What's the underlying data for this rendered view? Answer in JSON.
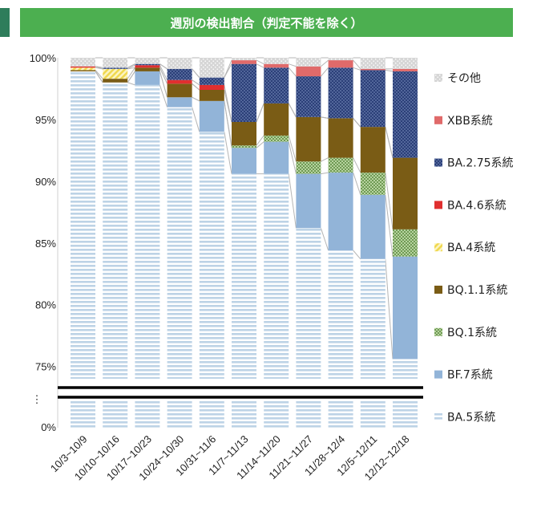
{
  "chart_data": {
    "type": "bar",
    "stacked": true,
    "title": "週別の検出割合（判定不能を除く）",
    "categories": [
      "10/3~10/9",
      "10/10~10/16",
      "10/17~10/23",
      "10/24~10/30",
      "10/31~11/6",
      "11/7~11/13",
      "11/14~11/20",
      "11/21~11/27",
      "11/28~12/4",
      "12/5~12/11",
      "12/12~12/18"
    ],
    "y_tick_labels": [
      "100%",
      "95%",
      "90%",
      "85%",
      "80%",
      "75%",
      "0%"
    ],
    "broken_axis": {
      "lower_label": "0%",
      "upper_range": [
        74,
        100
      ],
      "marker": "⋮"
    },
    "legend_position": "right",
    "series": [
      {
        "name": "BA.5系統",
        "color": "#bdd3e6",
        "pattern": "horizontal-lines",
        "values": [
          98.9,
          98.0,
          97.8,
          96.0,
          94.0,
          90.6,
          90.6,
          86.2,
          84.4,
          83.7,
          75.6
        ]
      },
      {
        "name": "BF.7系統",
        "color": "#92b4d8",
        "pattern": "solid",
        "values": [
          0.0,
          0.0,
          1.1,
          0.8,
          2.5,
          2.1,
          2.6,
          4.4,
          6.3,
          5.2,
          8.3
        ]
      },
      {
        "name": "BQ.1系統",
        "color": "#93b879",
        "pattern": "checker",
        "values": [
          0.0,
          0.0,
          0.0,
          0.0,
          0.0,
          0.2,
          0.5,
          1.0,
          1.2,
          1.8,
          2.2
        ]
      },
      {
        "name": "BQ.1.1系統",
        "color": "#7a5c15",
        "pattern": "solid",
        "values": [
          0.1,
          0.3,
          0.3,
          1.1,
          0.9,
          1.9,
          2.6,
          3.6,
          3.2,
          3.7,
          5.8
        ]
      },
      {
        "name": "BA.4系統",
        "color": "#f3e27a",
        "pattern": "diagonal",
        "values": [
          0.2,
          0.8,
          0.0,
          0.0,
          0.0,
          0.0,
          0.0,
          0.0,
          0.0,
          0.0,
          0.0
        ]
      },
      {
        "name": "BA.4.6系統",
        "color": "#e02f2f",
        "pattern": "solid",
        "values": [
          0.1,
          0.0,
          0.2,
          0.3,
          0.4,
          0.0,
          0.0,
          0.0,
          0.0,
          0.0,
          0.0
        ]
      },
      {
        "name": "BA.2.75系統",
        "color": "#2b3f78",
        "pattern": "dots",
        "values": [
          0.0,
          0.1,
          0.1,
          0.9,
          0.6,
          4.7,
          2.9,
          3.3,
          4.1,
          4.6,
          7.0
        ]
      },
      {
        "name": "XBB系統",
        "color": "#e06a6a",
        "pattern": "solid",
        "values": [
          0.0,
          0.0,
          0.0,
          0.0,
          0.0,
          0.3,
          0.3,
          0.8,
          0.6,
          0.1,
          0.2
        ]
      },
      {
        "name": "その他",
        "color": "#d3d3d3",
        "pattern": "dots",
        "values": [
          0.7,
          0.8,
          0.5,
          0.9,
          1.6,
          0.2,
          0.5,
          0.7,
          0.2,
          0.9,
          0.9
        ]
      }
    ],
    "grid": false
  }
}
